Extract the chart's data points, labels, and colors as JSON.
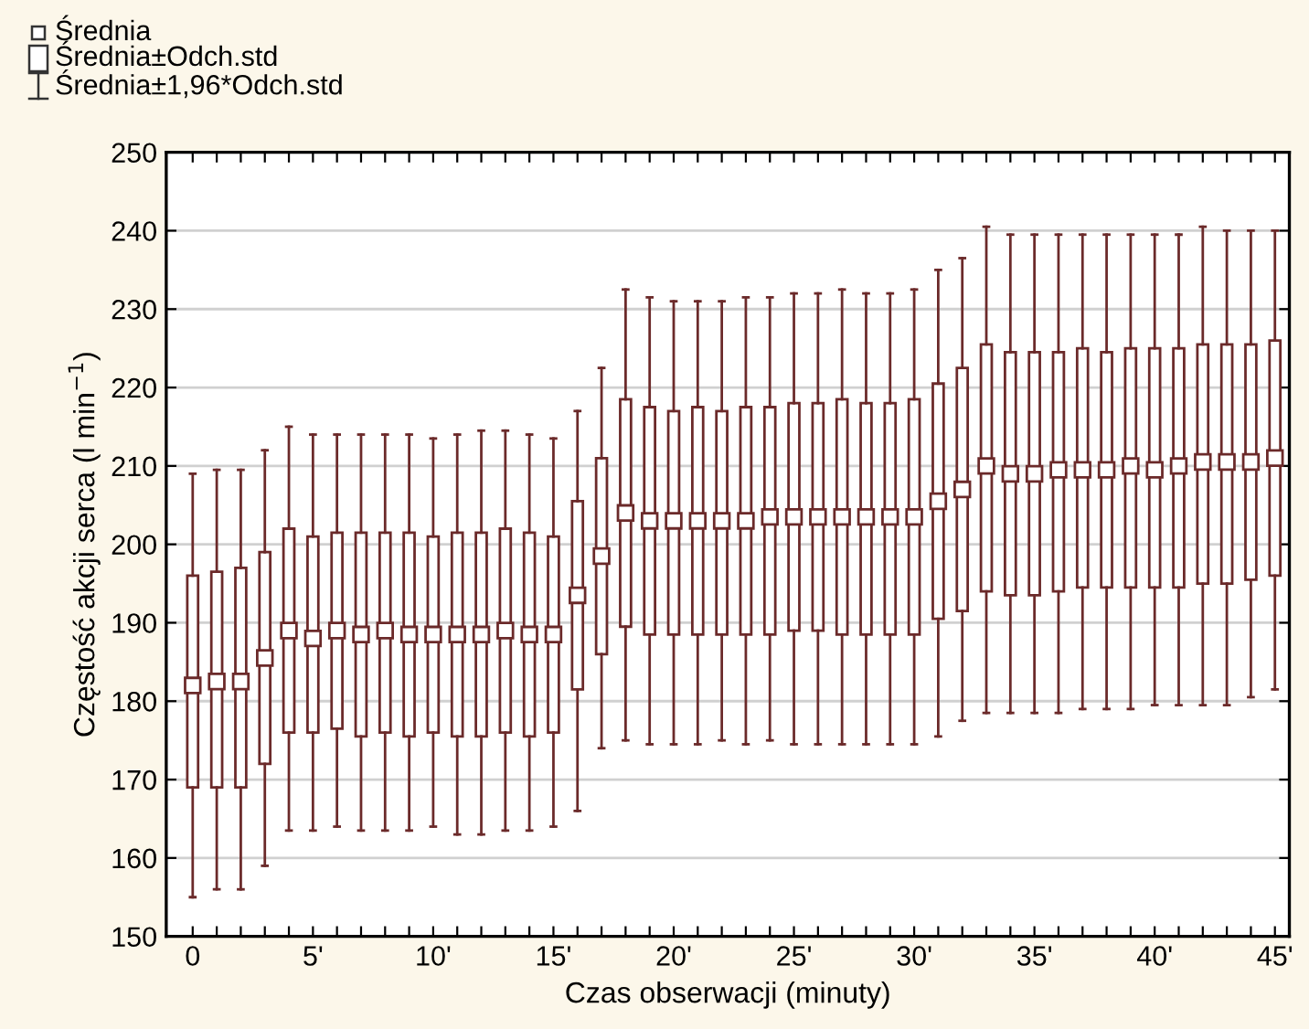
{
  "chart_data": {
    "type": "box",
    "xlabel": "Czas obserwacji (minuty)",
    "ylabel": "Częstość akcji serca (l min$^{−1}$)",
    "categories": [
      "0",
      null,
      null,
      null,
      null,
      "5'",
      null,
      null,
      null,
      null,
      "10'",
      null,
      null,
      null,
      null,
      "15'",
      null,
      null,
      null,
      null,
      "20'",
      null,
      null,
      null,
      null,
      "25'",
      null,
      null,
      null,
      null,
      "30'",
      null,
      null,
      null,
      null,
      "35'",
      null,
      null,
      null,
      null,
      "40'",
      null,
      null,
      null,
      null,
      "45'"
    ],
    "color": "#6b2a2a",
    "boxes": [
      {
        "low": 155,
        "q1": 169,
        "median": 182,
        "q3": 196,
        "high": 209
      },
      {
        "low": 156,
        "q1": 169,
        "median": 182.5,
        "q3": 196.5,
        "high": 209.5
      },
      {
        "low": 156,
        "q1": 169,
        "median": 182.5,
        "q3": 197,
        "high": 209.5
      },
      {
        "low": 159,
        "q1": 172,
        "median": 185.5,
        "q3": 199,
        "high": 212
      },
      {
        "low": 163.5,
        "q1": 176,
        "median": 189,
        "q3": 202,
        "high": 215
      },
      {
        "low": 163.5,
        "q1": 176,
        "median": 188,
        "q3": 201,
        "high": 214
      },
      {
        "low": 164,
        "q1": 176.5,
        "median": 189,
        "q3": 201.5,
        "high": 214
      },
      {
        "low": 163.5,
        "q1": 175.5,
        "median": 188.5,
        "q3": 201.5,
        "high": 214
      },
      {
        "low": 163.5,
        "q1": 176,
        "median": 189,
        "q3": 201.5,
        "high": 214
      },
      {
        "low": 163.5,
        "q1": 175.5,
        "median": 188.5,
        "q3": 201.5,
        "high": 214
      },
      {
        "low": 164,
        "q1": 176,
        "median": 188.5,
        "q3": 201,
        "high": 213.5
      },
      {
        "low": 163,
        "q1": 175.5,
        "median": 188.5,
        "q3": 201.5,
        "high": 214
      },
      {
        "low": 163,
        "q1": 175.5,
        "median": 188.5,
        "q3": 201.5,
        "high": 214.5
      },
      {
        "low": 163.5,
        "q1": 176,
        "median": 189,
        "q3": 202,
        "high": 214.5
      },
      {
        "low": 163.5,
        "q1": 175.5,
        "median": 188.5,
        "q3": 201.5,
        "high": 214
      },
      {
        "low": 164,
        "q1": 176,
        "median": 188.5,
        "q3": 201,
        "high": 213.5
      },
      {
        "low": 166,
        "q1": 181.5,
        "median": 193.5,
        "q3": 205.5,
        "high": 217
      },
      {
        "low": 174,
        "q1": 186,
        "median": 198.5,
        "q3": 211,
        "high": 222.5
      },
      {
        "low": 175,
        "q1": 189.5,
        "median": 204,
        "q3": 218.5,
        "high": 232.5
      },
      {
        "low": 174.5,
        "q1": 188.5,
        "median": 203,
        "q3": 217.5,
        "high": 231.5
      },
      {
        "low": 174.5,
        "q1": 188.5,
        "median": 203,
        "q3": 217,
        "high": 231
      },
      {
        "low": 174.5,
        "q1": 188.5,
        "median": 203,
        "q3": 217.5,
        "high": 231
      },
      {
        "low": 175,
        "q1": 188.5,
        "median": 203,
        "q3": 217,
        "high": 231
      },
      {
        "low": 174.5,
        "q1": 188.5,
        "median": 203,
        "q3": 217.5,
        "high": 231.5
      },
      {
        "low": 175,
        "q1": 188.5,
        "median": 203.5,
        "q3": 217.5,
        "high": 231.5
      },
      {
        "low": 174.5,
        "q1": 189,
        "median": 203.5,
        "q3": 218,
        "high": 232
      },
      {
        "low": 174.5,
        "q1": 189,
        "median": 203.5,
        "q3": 218,
        "high": 232
      },
      {
        "low": 174.5,
        "q1": 188.5,
        "median": 203.5,
        "q3": 218.5,
        "high": 232.5
      },
      {
        "low": 174.5,
        "q1": 188.5,
        "median": 203.5,
        "q3": 218,
        "high": 232
      },
      {
        "low": 174.5,
        "q1": 188.5,
        "median": 203.5,
        "q3": 218,
        "high": 232
      },
      {
        "low": 174.5,
        "q1": 188.5,
        "median": 203.5,
        "q3": 218.5,
        "high": 232.5
      },
      {
        "low": 175.5,
        "q1": 190.5,
        "median": 205.5,
        "q3": 220.5,
        "high": 235
      },
      {
        "low": 177.5,
        "q1": 191.5,
        "median": 207,
        "q3": 222.5,
        "high": 236.5
      },
      {
        "low": 178.5,
        "q1": 194,
        "median": 210,
        "q3": 225.5,
        "high": 240.5
      },
      {
        "low": 178.5,
        "q1": 193.5,
        "median": 209,
        "q3": 224.5,
        "high": 239.5
      },
      {
        "low": 178.5,
        "q1": 193.5,
        "median": 209,
        "q3": 224.5,
        "high": 239.5
      },
      {
        "low": 178.5,
        "q1": 194,
        "median": 209.5,
        "q3": 224.5,
        "high": 239.5
      },
      {
        "low": 179,
        "q1": 194.5,
        "median": 209.5,
        "q3": 225,
        "high": 239.5
      },
      {
        "low": 179,
        "q1": 194.5,
        "median": 209.5,
        "q3": 224.5,
        "high": 239.5
      },
      {
        "low": 179,
        "q1": 194.5,
        "median": 210,
        "q3": 225,
        "high": 239.5
      },
      {
        "low": 179.5,
        "q1": 194.5,
        "median": 209.5,
        "q3": 225,
        "high": 239.5
      },
      {
        "low": 179.5,
        "q1": 194.5,
        "median": 210,
        "q3": 225,
        "high": 239.5
      },
      {
        "low": 179.5,
        "q1": 195,
        "median": 210.5,
        "q3": 225.5,
        "high": 240.5
      },
      {
        "low": 179.5,
        "q1": 195,
        "median": 210.5,
        "q3": 225.5,
        "high": 240
      },
      {
        "low": 180.5,
        "q1": 195.5,
        "median": 210.5,
        "q3": 225.5,
        "high": 240
      },
      {
        "low": 181.5,
        "q1": 196,
        "median": 211,
        "q3": 226,
        "high": 240
      }
    ],
    "ylim": [
      150,
      250
    ],
    "yticks": [
      150,
      160,
      170,
      180,
      190,
      200,
      210,
      220,
      230,
      240,
      250
    ],
    "grid": "y",
    "marker": "square",
    "annotations": [
      "Średnia",
      "Średnia±Odch.std",
      "Średnia±1,96*Odch.std"
    ]
  }
}
